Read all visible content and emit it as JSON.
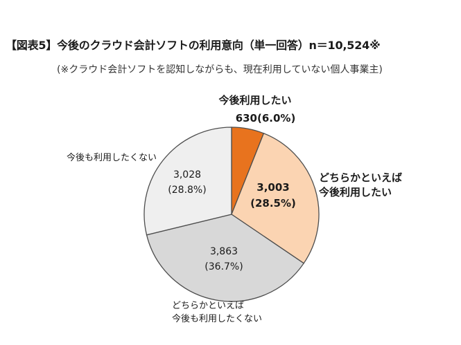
{
  "title": "【図表5】今後のクラウド会計ソフトの利用意向（単一回答）n＝10,524※",
  "subtitle": "(※クラウド会計ソフトを認知しながらも、現在利用していない個人事業主)",
  "chart_data": {
    "type": "pie",
    "total_label": "n＝10,524",
    "slices": [
      {
        "name_lines": [
          "今後利用したい"
        ],
        "count": "630",
        "percent": "(6.0%)",
        "value": 6.0,
        "color": "#e8731e",
        "emphasis": true
      },
      {
        "name_lines": [
          "どちらかといえば",
          "今後利用したい"
        ],
        "count": "3,003",
        "percent": "(28.5%)",
        "value": 28.5,
        "color": "#fbd4b2",
        "emphasis": true
      },
      {
        "name_lines": [
          "どちらかといえば",
          "今後も利用したくない"
        ],
        "count": "3,863",
        "percent": "(36.7%)",
        "value": 36.7,
        "color": "#d8d8d8",
        "emphasis": false
      },
      {
        "name_lines": [
          "今後も利用したくない"
        ],
        "count": "3,028",
        "percent": "(28.8%)",
        "value": 28.8,
        "color": "#efefef",
        "emphasis": false
      }
    ]
  }
}
